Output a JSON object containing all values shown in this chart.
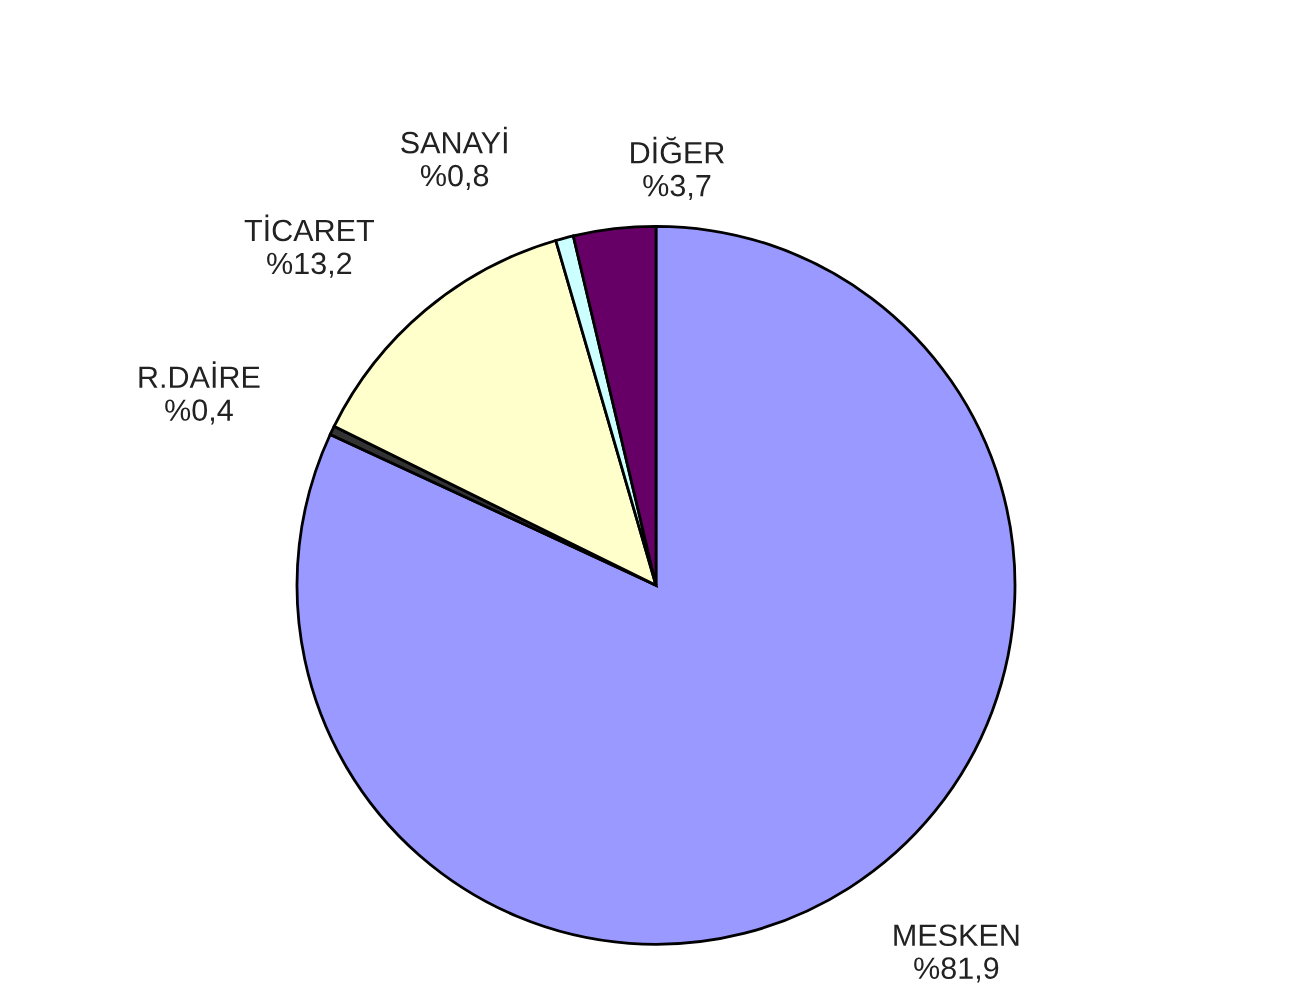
{
  "chart_data": {
    "type": "pie",
    "categories": [
      "MESKEN",
      "R.DAİRE",
      "TİCARET",
      "SANAYİ",
      "DİĞER"
    ],
    "values": [
      81.9,
      0.4,
      13.2,
      0.8,
      3.7
    ],
    "colors": [
      "#9999ff",
      "#333333",
      "#ffffcc",
      "#ccffff",
      "#660066"
    ],
    "value_labels": [
      "%81,9",
      "%0,4",
      "%13,2",
      "%0,8",
      "%3,7"
    ]
  }
}
